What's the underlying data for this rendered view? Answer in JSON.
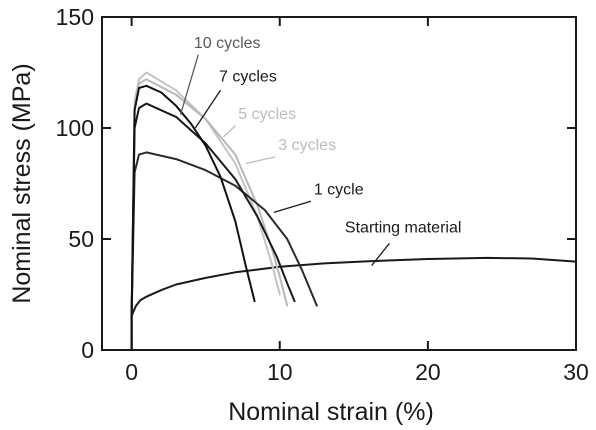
{
  "chart_data": {
    "type": "line",
    "xlabel": "Nominal strain (%)",
    "ylabel": "Nominal stress (MPa)",
    "xlim": [
      -2,
      30
    ],
    "ylim": [
      0,
      150
    ],
    "xticks": [
      0,
      10,
      20,
      30
    ],
    "yticks": [
      0,
      50,
      100,
      150
    ],
    "grid": false,
    "series": [
      {
        "name": "Starting material",
        "color": "#1a1a1a",
        "x": [
          0.0,
          0.0,
          0.1,
          0.3,
          0.6,
          1.0,
          2.0,
          3.0,
          5.0,
          7.0,
          10.0,
          13.0,
          16.0,
          20.0,
          24.0,
          27.0,
          30.0
        ],
        "y": [
          0.0,
          15.0,
          17.0,
          20.0,
          22.5,
          24.0,
          27.0,
          29.5,
          32.5,
          35.0,
          37.5,
          39.0,
          40.0,
          41.0,
          41.5,
          41.2,
          39.8
        ]
      },
      {
        "name": "1 cycle",
        "color": "#2b2b2b",
        "x": [
          0.0,
          0.0,
          0.2,
          0.5,
          1.0,
          3.0,
          5.0,
          7.0,
          9.0,
          10.5,
          11.5,
          12.0,
          12.5
        ],
        "y": [
          0.0,
          15.0,
          80.0,
          88.0,
          89.0,
          86.0,
          81.0,
          74.0,
          63.0,
          50.0,
          36.0,
          28.0,
          20.0
        ]
      },
      {
        "name": "3 cycles",
        "color": "#b8b8b8",
        "x": [
          0.0,
          0.0,
          0.2,
          0.5,
          1.0,
          3.0,
          5.0,
          7.0,
          8.5,
          9.5,
          10.0,
          10.5
        ],
        "y": [
          0.0,
          15.0,
          110.0,
          120.0,
          122.0,
          115.0,
          104.0,
          88.0,
          65.0,
          45.0,
          33.0,
          20.0
        ]
      },
      {
        "name": "5 cycles",
        "color": "#c4c4c4",
        "x": [
          0.0,
          0.0,
          0.2,
          0.5,
          1.0,
          3.0,
          5.0,
          7.0,
          8.5,
          9.5,
          10.0
        ],
        "y": [
          0.0,
          15.0,
          112.0,
          122.0,
          125.0,
          117.0,
          104.0,
          84.0,
          60.0,
          38.0,
          25.0
        ]
      },
      {
        "name": "7 cycles",
        "color": "#1a1a1a",
        "x": [
          0.0,
          0.0,
          0.2,
          0.5,
          1.0,
          3.0,
          5.0,
          7.0,
          8.5,
          9.8,
          10.5,
          11.0
        ],
        "y": [
          0.0,
          15.0,
          100.0,
          109.0,
          111.0,
          105.0,
          93.0,
          77.0,
          60.0,
          42.0,
          30.0,
          22.0
        ]
      },
      {
        "name": "10 cycles",
        "color": "#111111",
        "x": [
          0.0,
          0.0,
          0.2,
          0.5,
          1.0,
          2.0,
          3.0,
          4.0,
          5.0,
          6.0,
          7.0,
          7.7,
          8.3
        ],
        "y": [
          0.0,
          15.0,
          108.0,
          118.0,
          119.0,
          116.0,
          110.0,
          102.0,
          92.0,
          78.0,
          58.0,
          38.0,
          22.0
        ]
      }
    ],
    "annotations": [
      {
        "text": "10 cycles",
        "color": "#5a5a5a",
        "x": 4.2,
        "y": 136.0,
        "anchor": "start",
        "leader": [
          4.5,
          133,
          3.3,
          106
        ]
      },
      {
        "text": "7 cycles",
        "color": "#1a1a1a",
        "x": 5.9,
        "y": 121.0,
        "anchor": "start",
        "leader": [
          6.0,
          117,
          4.3,
          100
        ]
      },
      {
        "text": "5 cycles",
        "color": "#bdbdbd",
        "x": 7.2,
        "y": 104.0,
        "anchor": "start",
        "leader": [
          7.0,
          101,
          6.2,
          96
        ]
      },
      {
        "text": "3 cycles",
        "color": "#bdbdbd",
        "x": 9.9,
        "y": 90.0,
        "anchor": "start",
        "leader": [
          9.7,
          87,
          7.7,
          84
        ]
      },
      {
        "text": "1 cycle",
        "color": "#1a1a1a",
        "x": 12.3,
        "y": 70.0,
        "anchor": "start",
        "leader": [
          12.1,
          67,
          9.6,
          62
        ]
      },
      {
        "text": "Starting material",
        "color": "#1a1a1a",
        "x": 14.4,
        "y": 53.0,
        "anchor": "start",
        "leader": [
          17.4,
          48,
          16.2,
          38
        ]
      }
    ]
  }
}
